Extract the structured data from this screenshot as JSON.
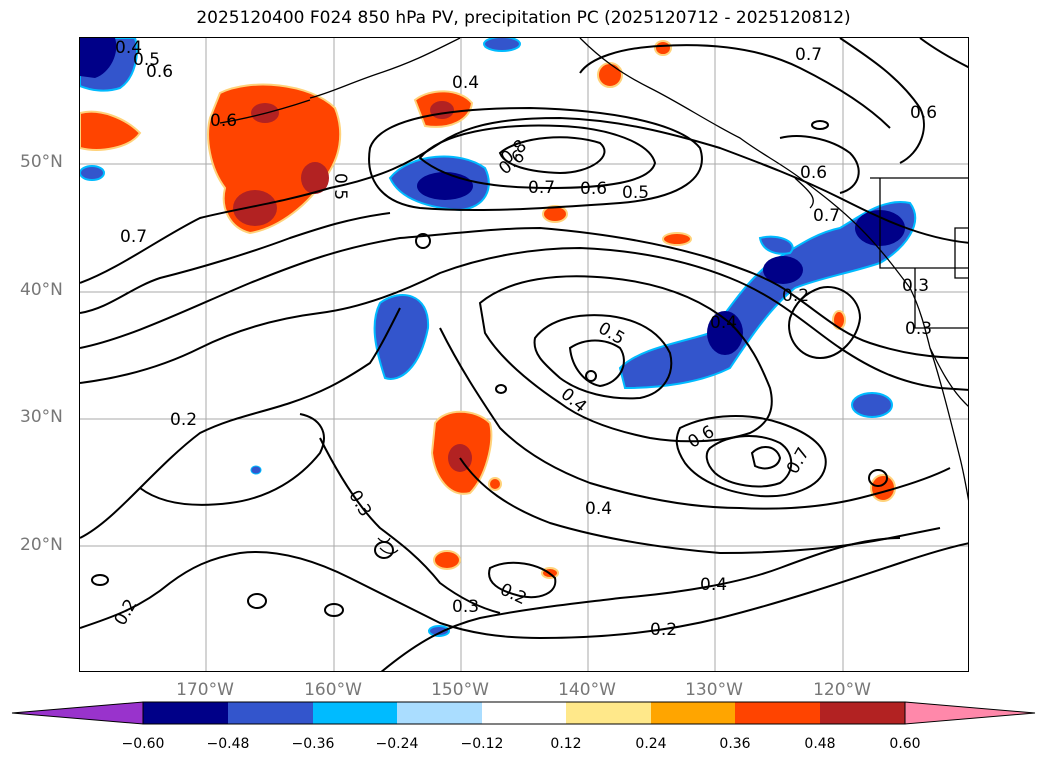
{
  "title": "2025120400 F024 850 hPa PV, precipitation PC (2025120712 - 2025120812)",
  "map": {
    "lat_ticks": [
      "50°N",
      "40°N",
      "30°N",
      "20°N"
    ],
    "lon_ticks": [
      "170°W",
      "160°W",
      "150°W",
      "140°W",
      "130°W",
      "120°W"
    ],
    "contour_labels": [
      "0.4",
      "0.5",
      "0.6",
      "0.7",
      "0.6",
      "0.4",
      "0.6",
      "0.8",
      "0.7",
      "0.6",
      "0.5",
      "0.7",
      "0.6",
      "0.7",
      "0.5",
      "0.6",
      "0.5",
      "0.4",
      "0.3",
      "0.3",
      "0.6",
      "0.7",
      "0.4",
      "0.4",
      "0.2",
      "0.3",
      "0.3",
      "0.2",
      "0.2",
      "0.2",
      "0.4",
      "0.2"
    ]
  },
  "colorbar": {
    "tick_labels": [
      "−0.60",
      "−0.48",
      "−0.36",
      "−0.24",
      "−0.12",
      "0.12",
      "0.24",
      "0.36",
      "0.48",
      "0.60"
    ],
    "colors": [
      "#9933cc",
      "#000088",
      "#3355cc",
      "#00bbff",
      "#aaddff",
      "#ffffff",
      "#ffe88a",
      "#ffa500",
      "#ff4400",
      "#b22222",
      "#ff88aa"
    ]
  }
}
